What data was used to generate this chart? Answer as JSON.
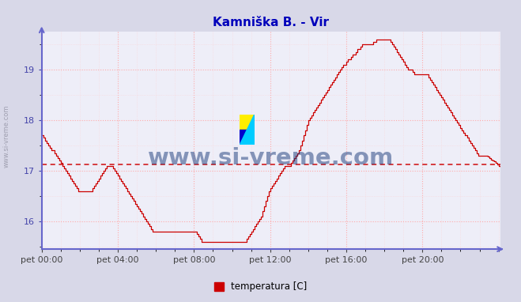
{
  "title": "Kamniška B. - Vir",
  "title_color": "#0000bb",
  "bg_color": "#d8d8e8",
  "plot_bg_color": "#eeeef8",
  "grid_major_color": "#ffaaaa",
  "grid_minor_color": "#ffcccc",
  "axis_color": "#6666cc",
  "line_color": "#cc0000",
  "avg_line_color": "#cc0000",
  "ylim_min": 15.45,
  "ylim_max": 19.75,
  "yticks": [
    16,
    17,
    18,
    19
  ],
  "xtick_positions": [
    0,
    4,
    8,
    12,
    16,
    20
  ],
  "xtick_labels": [
    "pet 00:00",
    "pet 04:00",
    "pet 08:00",
    "pet 12:00",
    "pet 16:00",
    "pet 20:00"
  ],
  "avg_value": 17.12,
  "legend_label": "temperatura [C]",
  "watermark": "www.si-vreme.com",
  "watermark_color": "#1a3a7a",
  "left_label": "www.si-vreme.com",
  "temperatures": [
    17.7,
    17.65,
    17.6,
    17.55,
    17.5,
    17.45,
    17.4,
    17.4,
    17.35,
    17.3,
    17.25,
    17.2,
    17.15,
    17.1,
    17.05,
    17.0,
    16.95,
    16.9,
    16.85,
    16.8,
    16.75,
    16.7,
    16.65,
    16.6,
    16.6,
    16.6,
    16.6,
    16.6,
    16.6,
    16.6,
    16.6,
    16.6,
    16.65,
    16.7,
    16.75,
    16.8,
    16.85,
    16.9,
    16.95,
    17.0,
    17.05,
    17.1,
    17.1,
    17.1,
    17.1,
    17.05,
    17.0,
    16.95,
    16.9,
    16.85,
    16.8,
    16.75,
    16.7,
    16.65,
    16.6,
    16.55,
    16.5,
    16.45,
    16.4,
    16.35,
    16.3,
    16.25,
    16.2,
    16.15,
    16.1,
    16.05,
    16.0,
    15.95,
    15.9,
    15.85,
    15.8,
    15.8,
    15.8,
    15.8,
    15.8,
    15.8,
    15.8,
    15.8,
    15.8,
    15.8,
    15.8,
    15.8,
    15.8,
    15.8,
    15.8,
    15.8,
    15.8,
    15.8,
    15.8,
    15.8,
    15.8,
    15.8,
    15.8,
    15.8,
    15.8,
    15.8,
    15.8,
    15.8,
    15.75,
    15.7,
    15.65,
    15.6,
    15.6,
    15.6,
    15.6,
    15.6,
    15.6,
    15.6,
    15.6,
    15.6,
    15.6,
    15.6,
    15.6,
    15.6,
    15.6,
    15.6,
    15.6,
    15.6,
    15.6,
    15.6,
    15.6,
    15.6,
    15.6,
    15.6,
    15.6,
    15.6,
    15.6,
    15.6,
    15.6,
    15.65,
    15.7,
    15.75,
    15.8,
    15.85,
    15.9,
    15.95,
    16.0,
    16.05,
    16.1,
    16.2,
    16.3,
    16.4,
    16.5,
    16.6,
    16.65,
    16.7,
    16.75,
    16.8,
    16.85,
    16.9,
    16.95,
    17.0,
    17.05,
    17.1,
    17.1,
    17.1,
    17.1,
    17.15,
    17.2,
    17.25,
    17.3,
    17.35,
    17.4,
    17.5,
    17.6,
    17.7,
    17.8,
    17.9,
    18.0,
    18.05,
    18.1,
    18.15,
    18.2,
    18.25,
    18.3,
    18.35,
    18.4,
    18.45,
    18.5,
    18.55,
    18.6,
    18.65,
    18.7,
    18.75,
    18.8,
    18.85,
    18.9,
    18.95,
    19.0,
    19.05,
    19.1,
    19.1,
    19.15,
    19.2,
    19.2,
    19.25,
    19.3,
    19.3,
    19.35,
    19.4,
    19.4,
    19.45,
    19.5,
    19.5,
    19.5,
    19.5,
    19.5,
    19.5,
    19.5,
    19.55,
    19.55,
    19.6,
    19.6,
    19.6,
    19.6,
    19.6,
    19.6,
    19.6,
    19.6,
    19.6,
    19.55,
    19.5,
    19.45,
    19.4,
    19.35,
    19.3,
    19.25,
    19.2,
    19.15,
    19.1,
    19.05,
    19.0,
    19.0,
    19.0,
    18.95,
    18.9,
    18.9,
    18.9,
    18.9,
    18.9,
    18.9,
    18.9,
    18.9,
    18.9,
    18.85,
    18.8,
    18.75,
    18.7,
    18.65,
    18.6,
    18.55,
    18.5,
    18.45,
    18.4,
    18.35,
    18.3,
    18.25,
    18.2,
    18.15,
    18.1,
    18.05,
    18.0,
    17.95,
    17.9,
    17.85,
    17.8,
    17.75,
    17.7,
    17.65,
    17.6,
    17.55,
    17.5,
    17.45,
    17.4,
    17.35,
    17.3,
    17.3,
    17.3,
    17.3,
    17.3,
    17.3,
    17.28,
    17.25,
    17.22,
    17.2,
    17.18,
    17.15,
    17.12,
    17.1,
    17.08
  ]
}
